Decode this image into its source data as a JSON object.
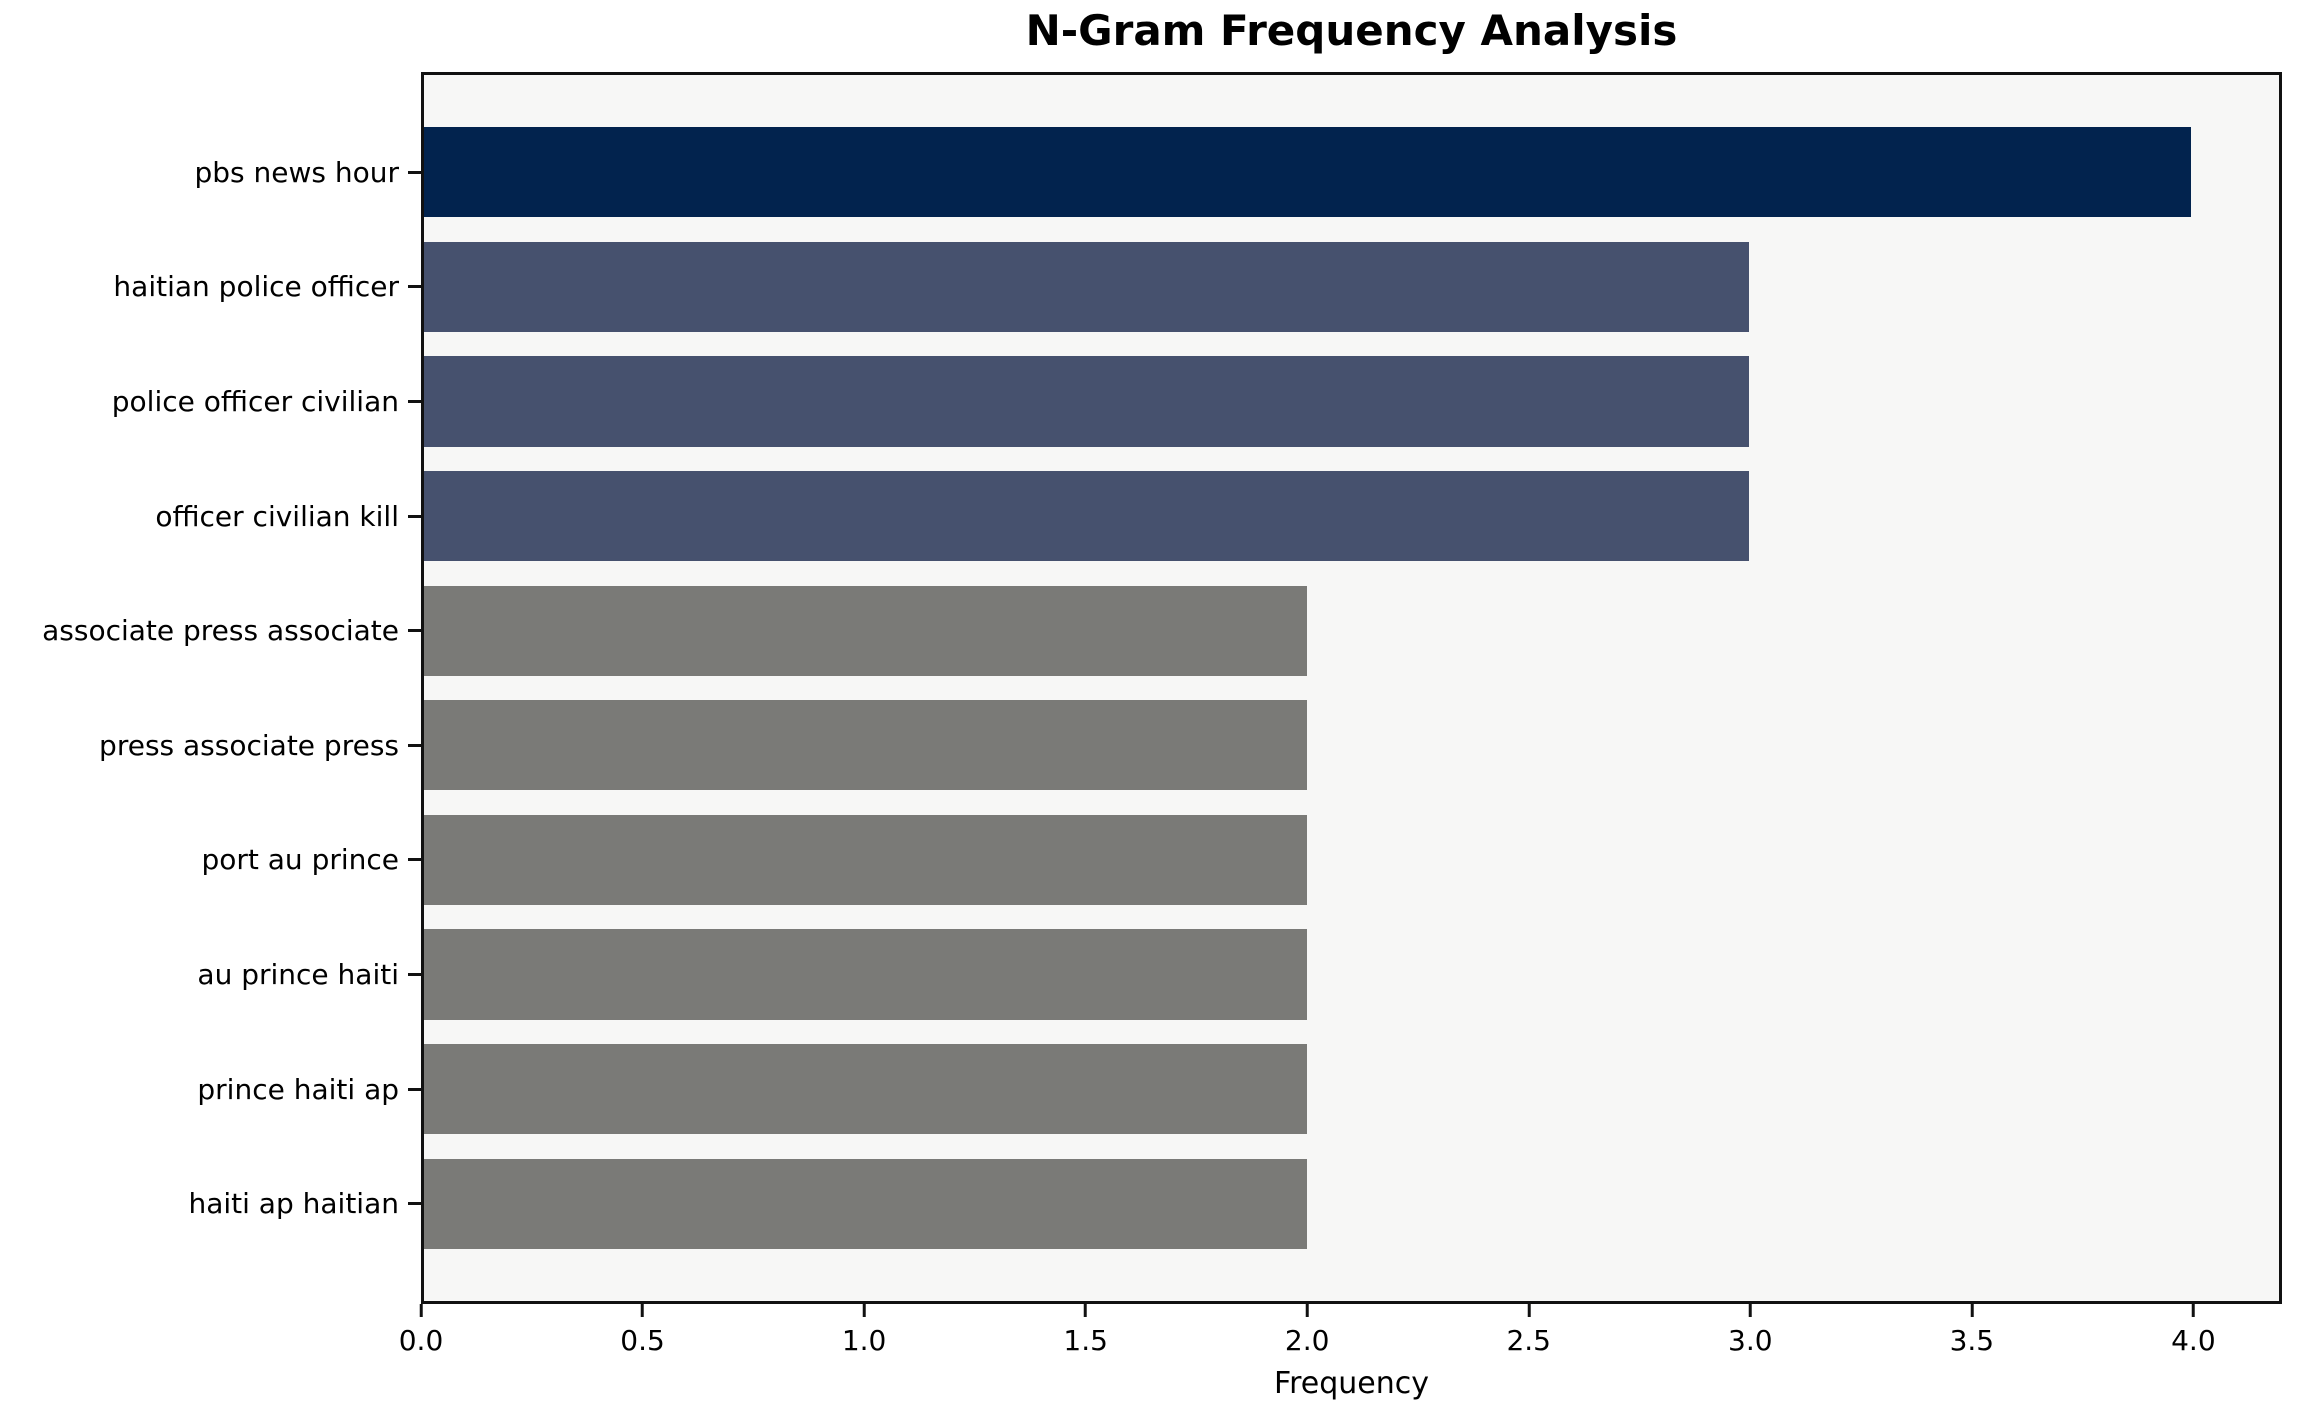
{
  "chart_data": {
    "type": "bar",
    "orientation": "horizontal",
    "title": "N-Gram Frequency Analysis",
    "xlabel": "Frequency",
    "ylabel": "",
    "categories": [
      "pbs news hour",
      "haitian police officer",
      "police officer civilian",
      "officer civilian kill",
      "associate press associate",
      "press associate press",
      "port au prince",
      "au prince haiti",
      "prince haiti ap",
      "haiti ap haitian"
    ],
    "values": [
      4,
      3,
      3,
      3,
      2,
      2,
      2,
      2,
      2,
      2
    ],
    "bar_colors": [
      "#02234e",
      "#46516e",
      "#46516e",
      "#46516e",
      "#7a7a77",
      "#7a7a77",
      "#7a7a77",
      "#7a7a77",
      "#7a7a77",
      "#7a7a77"
    ],
    "xlim": [
      0,
      4.2
    ],
    "x_ticks": [
      "0.0",
      "0.5",
      "1.0",
      "1.5",
      "2.0",
      "2.5",
      "3.0",
      "3.5",
      "4.0"
    ],
    "grid": false,
    "legend": false,
    "plot_background": "#f7f7f6",
    "figure_background": "#ffffff"
  }
}
